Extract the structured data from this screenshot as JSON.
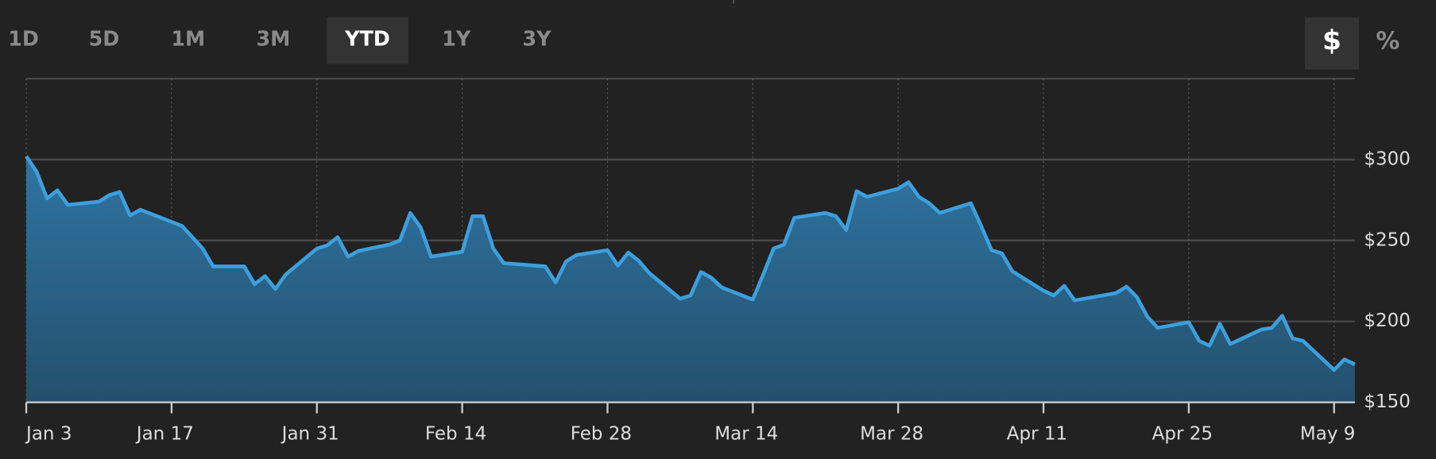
{
  "toolbar": {
    "ranges": [
      "1D",
      "5D",
      "1M",
      "3M",
      "YTD",
      "1Y",
      "3Y"
    ],
    "active_range": 4,
    "units": [
      "$",
      "%"
    ],
    "active_unit": 0
  },
  "chart_data": {
    "type": "area",
    "x": [
      "Jan 3",
      "Jan 4",
      "Jan 5",
      "Jan 6",
      "Jan 7",
      "Jan 10",
      "Jan 11",
      "Jan 12",
      "Jan 13",
      "Jan 14",
      "Jan 18",
      "Jan 19",
      "Jan 20",
      "Jan 21",
      "Jan 24",
      "Jan 25",
      "Jan 26",
      "Jan 27",
      "Jan 28",
      "Jan 31",
      "Feb 1",
      "Feb 2",
      "Feb 3",
      "Feb 4",
      "Feb 7",
      "Feb 8",
      "Feb 9",
      "Feb 10",
      "Feb 11",
      "Feb 14",
      "Feb 15",
      "Feb 16",
      "Feb 17",
      "Feb 18",
      "Feb 22",
      "Feb 23",
      "Feb 24",
      "Feb 25",
      "Feb 28",
      "Mar 1",
      "Mar 2",
      "Mar 3",
      "Mar 4",
      "Mar 7",
      "Mar 8",
      "Mar 9",
      "Mar 10",
      "Mar 11",
      "Mar 14",
      "Mar 15",
      "Mar 16",
      "Mar 17",
      "Mar 18",
      "Mar 21",
      "Mar 22",
      "Mar 23",
      "Mar 24",
      "Mar 25",
      "Mar 28",
      "Mar 29",
      "Mar 30",
      "Mar 31",
      "Apr 1",
      "Apr 4",
      "Apr 5",
      "Apr 6",
      "Apr 7",
      "Apr 8",
      "Apr 11",
      "Apr 12",
      "Apr 13",
      "Apr 14",
      "Apr 18",
      "Apr 19",
      "Apr 20",
      "Apr 21",
      "Apr 22",
      "Apr 25",
      "Apr 26",
      "Apr 27",
      "Apr 28",
      "Apr 29",
      "May 2",
      "May 3",
      "May 4",
      "May 5",
      "May 6",
      "May 9",
      "May 10",
      "May 11"
    ],
    "series": [
      {
        "color": "#3d9fdc",
        "values": [
          302,
          292.5,
          276,
          281,
          272,
          274,
          278,
          280,
          265.5,
          269,
          259,
          252,
          245,
          234,
          234,
          223,
          228,
          220,
          229,
          245,
          247,
          252,
          240,
          243.5,
          247.5,
          250,
          267,
          258,
          240,
          243,
          265,
          265,
          245,
          236,
          234,
          224,
          237,
          241,
          244,
          234.5,
          242.5,
          237.5,
          230,
          214,
          216,
          230.5,
          227,
          221,
          213.5,
          229,
          245,
          247.5,
          264,
          267,
          265,
          256.5,
          280.5,
          277,
          282,
          286,
          277,
          273,
          267,
          273,
          259,
          244,
          242,
          231,
          219,
          216,
          222,
          213,
          217.5,
          221.5,
          215,
          203,
          196,
          199.5,
          188,
          185,
          198.5,
          186,
          195,
          196,
          203.5,
          189.5,
          188,
          170,
          176.5,
          173.5
        ]
      }
    ],
    "xlim": [
      "Jan 3",
      "May 11"
    ],
    "xticks": [
      "Jan 3",
      "Jan 17",
      "Jan 31",
      "Feb 14",
      "Feb 28",
      "Mar 14",
      "Mar 28",
      "Apr 11",
      "Apr 25",
      "May 9"
    ],
    "ylim": [
      150,
      350
    ],
    "yticks": [
      {
        "value": 150,
        "label": "$150"
      },
      {
        "value": 200,
        "label": "$200"
      },
      {
        "value": 250,
        "label": "$250"
      },
      {
        "value": 300,
        "label": "$300"
      }
    ],
    "grid": true
  }
}
